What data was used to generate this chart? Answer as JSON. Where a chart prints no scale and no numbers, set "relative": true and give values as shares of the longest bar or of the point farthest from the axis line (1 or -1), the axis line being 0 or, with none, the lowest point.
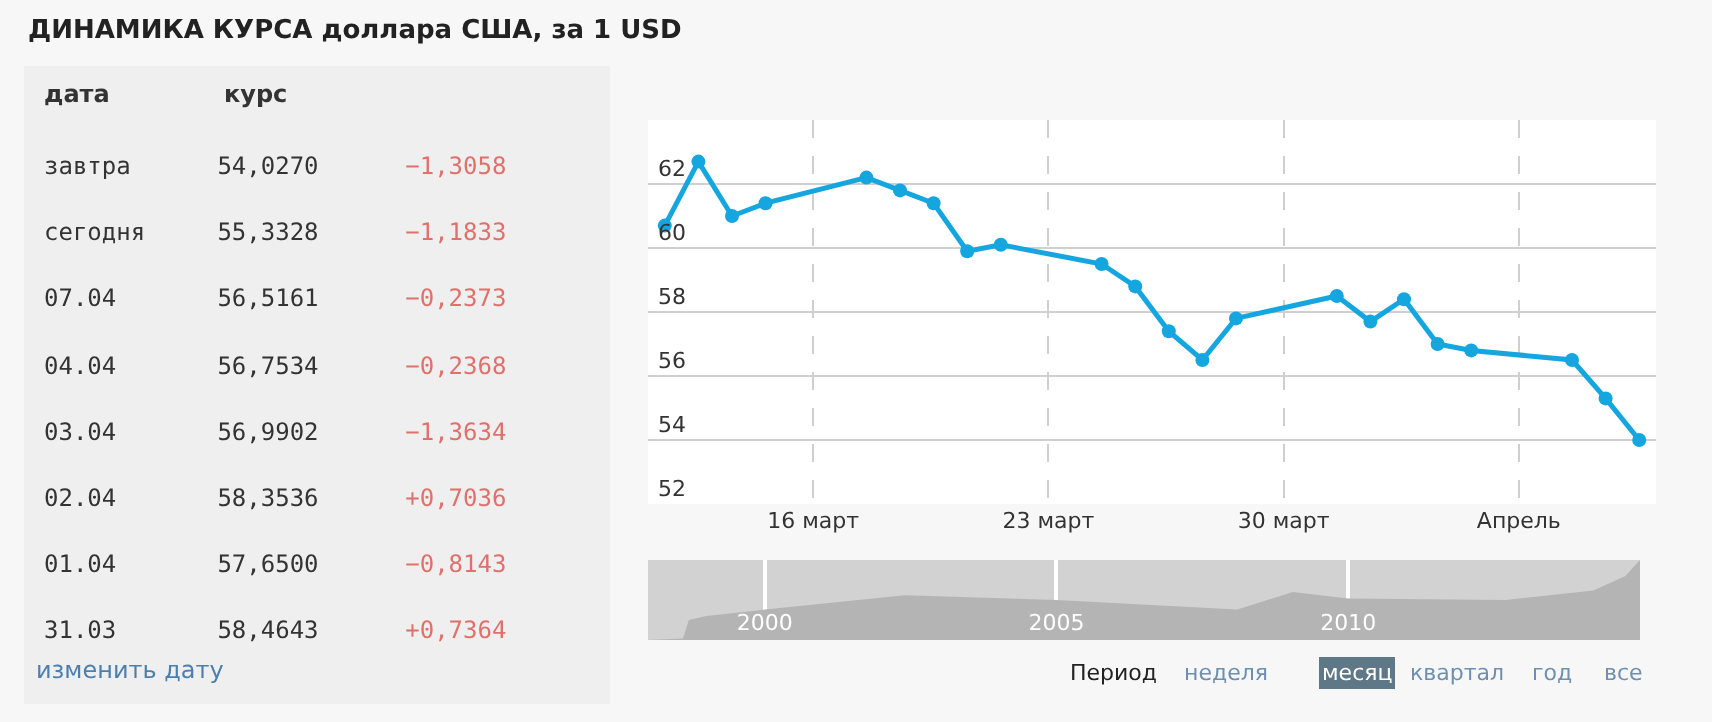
{
  "chart_data": [
    {
      "type": "other",
      "title": "ДИНАМИКА КУРСА доллара США, за 1 USD",
      "annotations": [
        "дата",
        "курс",
        "завтра",
        "54,0270",
        "−1,3058",
        "сегодня",
        "55,3328",
        "−1,1833",
        "07.04",
        "56,5161",
        "−0,2373",
        "04.04",
        "56,7534",
        "−0,2368",
        "03.04",
        "56,9902",
        "−1,3634",
        "02.04",
        "58,3536",
        "+0,7036",
        "01.04",
        "57,6500",
        "−0,8143",
        "31.03",
        "58,4643",
        "+0,7364",
        "изменить дату"
      ]
    },
    {
      "type": "line",
      "x": [
        "--03-11",
        "--03-12",
        "--03-13",
        "--03-14",
        "--03-17",
        "--03-18",
        "--03-19",
        "--03-20",
        "--03-21",
        "--03-24",
        "--03-25",
        "--03-26",
        "--03-27",
        "--03-28",
        "--03-31",
        "--04-01",
        "--04-02",
        "--04-03",
        "--04-04",
        "--04-07",
        "--04-08",
        "--04-09"
      ],
      "series": [
        {
          "color": "#15a6e0",
          "values": [
            60.7,
            62.7,
            61.0,
            61.4,
            62.2,
            61.8,
            61.4,
            59.9,
            60.1,
            59.5,
            58.8,
            57.4,
            56.5,
            57.8,
            58.5,
            57.7,
            58.4,
            57.0,
            56.8,
            56.5,
            55.3,
            54.0
          ]
        }
      ],
      "xlim": [
        "--03-10T12:00",
        "--04-09T12:00"
      ],
      "xticks": [
        {
          "value": "--03-15T10:00",
          "label": "16 март"
        },
        {
          "value": "--03-22T10:00",
          "label": "23 март"
        },
        {
          "value": "--03-29T10:00",
          "label": "30 март"
        },
        {
          "value": "--04-05T10:00",
          "label": "Апрель"
        }
      ],
      "ylim": [
        52,
        64
      ],
      "yticks": [
        52,
        54,
        56,
        58,
        60,
        62
      ],
      "grid": true,
      "marker": "circle",
      "line_style": "solid"
    },
    {
      "type": "area",
      "relative": true,
      "x": [
        1998.0,
        1998.6,
        1998.7,
        1999.0,
        2000.0,
        2002.4,
        2005.0,
        2008.1,
        2009.05,
        2010.0,
        2012.7,
        2014.2,
        2014.75,
        2015.0
      ],
      "values": [
        0,
        0.02,
        0.25,
        0.3,
        0.38,
        0.56,
        0.5,
        0.38,
        0.6,
        0.52,
        0.5,
        0.62,
        0.8,
        1
      ],
      "color": "#b4b4b4",
      "xlim": [
        1998,
        2015
      ],
      "xticks": [
        2000,
        2005,
        2010
      ],
      "grid": "x",
      "annotations": [
        "Период",
        "неделя",
        "месяц",
        "квартал",
        "год",
        "все"
      ]
    }
  ]
}
